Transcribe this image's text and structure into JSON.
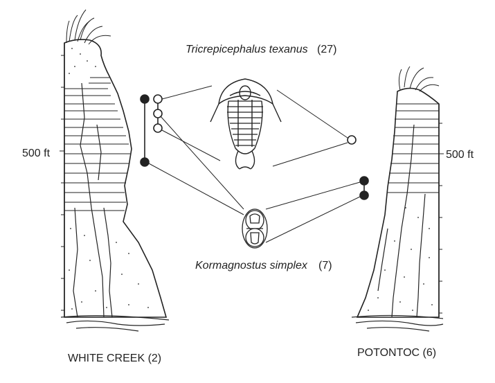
{
  "species_top": {
    "name": "Tricrepicephalus texanus",
    "count": "(27)"
  },
  "species_bottom": {
    "name": "Kormagnostus simplex",
    "count": "(7)"
  },
  "columns": {
    "left": {
      "name": "WHITE CREEK (2)",
      "scale": "500 ft"
    },
    "right": {
      "name": "POTONTOC (6)",
      "scale": "500 ft"
    }
  },
  "colors": {
    "ink": "#222222",
    "background": "#ffffff"
  }
}
